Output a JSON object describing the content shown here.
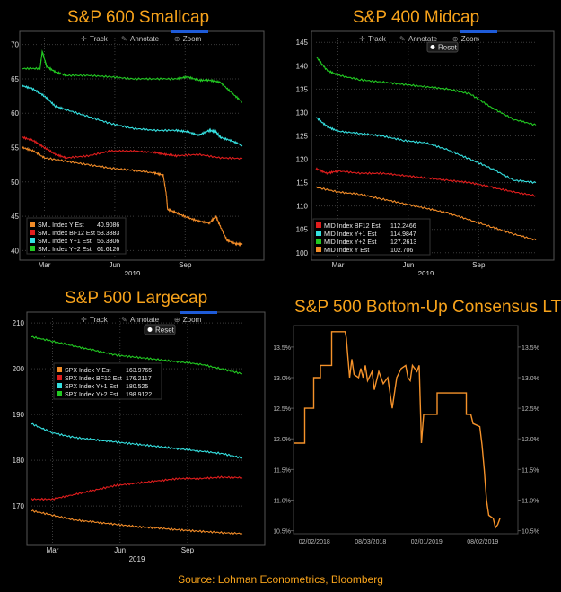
{
  "source": "Source: Lohman Econometrics, Bloomberg",
  "colors": {
    "title": "#f6a21b",
    "orange": "#f28c28",
    "red": "#e11d1d",
    "cyan": "#35e0e0",
    "green": "#22c922",
    "ltg_line": "#f5922a"
  },
  "toolbar": {
    "track": "Track",
    "annotate": "Annotate",
    "zoom": "Zoom",
    "reset": "Reset"
  },
  "chart_data": [
    {
      "id": "sml",
      "type": "line",
      "title": "S&P 600 Smallcap",
      "ylim": [
        39,
        71
      ],
      "yticks": [
        40,
        45,
        50,
        55,
        60,
        65,
        70
      ],
      "x_ticks": [
        "Mar",
        "Jun",
        "Sep"
      ],
      "x_year": "2019",
      "legend": [
        {
          "label": "SML Index Y Est",
          "value": "40.9086",
          "color": "#f28c28"
        },
        {
          "label": "SML Index BF12 Est",
          "value": "53.3883",
          "color": "#e11d1d"
        },
        {
          "label": "SML Index Y+1 Est",
          "value": "55.3306",
          "color": "#35e0e0"
        },
        {
          "label": "SML Index Y+2 Est",
          "value": "61.6126",
          "color": "#22c922"
        }
      ],
      "series": [
        {
          "name": "Y Est",
          "color": "#f28c28",
          "points": [
            [
              0,
              55
            ],
            [
              0.05,
              54.5
            ],
            [
              0.1,
              53.5
            ],
            [
              0.2,
              53
            ],
            [
              0.3,
              52.5
            ],
            [
              0.4,
              52
            ],
            [
              0.5,
              51.7
            ],
            [
              0.6,
              51.3
            ],
            [
              0.64,
              51
            ],
            [
              0.655,
              48
            ],
            [
              0.66,
              46
            ],
            [
              0.7,
              45.5
            ],
            [
              0.75,
              44.8
            ],
            [
              0.8,
              44.3
            ],
            [
              0.85,
              44
            ],
            [
              0.88,
              45
            ],
            [
              0.9,
              43.5
            ],
            [
              0.93,
              41.5
            ],
            [
              0.97,
              41
            ],
            [
              1,
              40.9
            ]
          ]
        },
        {
          "name": "BF12 Est",
          "color": "#e11d1d",
          "points": [
            [
              0,
              56.5
            ],
            [
              0.05,
              56
            ],
            [
              0.1,
              55
            ],
            [
              0.15,
              54
            ],
            [
              0.2,
              53.5
            ],
            [
              0.3,
              53.8
            ],
            [
              0.4,
              54.5
            ],
            [
              0.5,
              54.5
            ],
            [
              0.6,
              54.3
            ],
            [
              0.65,
              54
            ],
            [
              0.7,
              53.8
            ],
            [
              0.8,
              54
            ],
            [
              0.9,
              53.5
            ],
            [
              1,
              53.4
            ]
          ]
        },
        {
          "name": "Y+1 Est",
          "color": "#35e0e0",
          "points": [
            [
              0,
              64
            ],
            [
              0.05,
              63.5
            ],
            [
              0.1,
              62.5
            ],
            [
              0.15,
              61
            ],
            [
              0.2,
              60.5
            ],
            [
              0.3,
              59.5
            ],
            [
              0.4,
              58.5
            ],
            [
              0.5,
              57.8
            ],
            [
              0.6,
              57.5
            ],
            [
              0.7,
              57.5
            ],
            [
              0.75,
              57.3
            ],
            [
              0.8,
              56.8
            ],
            [
              0.85,
              57.5
            ],
            [
              0.88,
              57.3
            ],
            [
              0.9,
              56.5
            ],
            [
              0.95,
              56
            ],
            [
              1,
              55.3
            ]
          ]
        },
        {
          "name": "Y+2 Est",
          "color": "#22c922",
          "points": [
            [
              0,
              66.5
            ],
            [
              0.08,
              66.5
            ],
            [
              0.09,
              69
            ],
            [
              0.11,
              66.8
            ],
            [
              0.15,
              66
            ],
            [
              0.2,
              65.5
            ],
            [
              0.3,
              65.5
            ],
            [
              0.4,
              65.3
            ],
            [
              0.5,
              65
            ],
            [
              0.6,
              65
            ],
            [
              0.7,
              65
            ],
            [
              0.75,
              65.3
            ],
            [
              0.8,
              64.8
            ],
            [
              0.85,
              64.8
            ],
            [
              0.9,
              64.5
            ],
            [
              0.95,
              63
            ],
            [
              1,
              61.6
            ]
          ]
        }
      ]
    },
    {
      "id": "mid",
      "type": "line",
      "title": "S&P 400 Midcap",
      "ylim": [
        99,
        146
      ],
      "yticks": [
        100,
        105,
        110,
        115,
        120,
        125,
        130,
        135,
        140,
        145
      ],
      "x_ticks": [
        "Mar",
        "Jun",
        "Sep"
      ],
      "x_year": "2019",
      "legend": [
        {
          "label": "MID Index BF12 Est",
          "value": "112.2466",
          "color": "#e11d1d"
        },
        {
          "label": "MID Index Y+1 Est",
          "value": "114.9847",
          "color": "#35e0e0"
        },
        {
          "label": "MID Index Y+2 Est",
          "value": "127.2613",
          "color": "#22c922"
        },
        {
          "label": "MID Index Y Est",
          "value": "102.706",
          "color": "#f28c28"
        }
      ],
      "series": [
        {
          "name": "Y+2 Est",
          "color": "#22c922",
          "points": [
            [
              0,
              142
            ],
            [
              0.05,
              139
            ],
            [
              0.1,
              138
            ],
            [
              0.2,
              137
            ],
            [
              0.3,
              136.5
            ],
            [
              0.4,
              136
            ],
            [
              0.5,
              135.5
            ],
            [
              0.6,
              135
            ],
            [
              0.7,
              134
            ],
            [
              0.8,
              131
            ],
            [
              0.9,
              128.5
            ],
            [
              1,
              127.3
            ]
          ]
        },
        {
          "name": "Y+1 Est",
          "color": "#35e0e0",
          "points": [
            [
              0,
              129
            ],
            [
              0.05,
              127
            ],
            [
              0.1,
              126
            ],
            [
              0.2,
              125.5
            ],
            [
              0.3,
              125
            ],
            [
              0.4,
              124
            ],
            [
              0.5,
              123.5
            ],
            [
              0.6,
              122
            ],
            [
              0.7,
              120
            ],
            [
              0.8,
              118
            ],
            [
              0.9,
              115.5
            ],
            [
              1,
              115
            ]
          ]
        },
        {
          "name": "BF12 Est",
          "color": "#e11d1d",
          "points": [
            [
              0,
              118
            ],
            [
              0.05,
              117
            ],
            [
              0.1,
              117.5
            ],
            [
              0.2,
              117
            ],
            [
              0.3,
              117
            ],
            [
              0.4,
              116.5
            ],
            [
              0.5,
              116
            ],
            [
              0.6,
              115.5
            ],
            [
              0.7,
              115
            ],
            [
              0.8,
              114
            ],
            [
              0.9,
              113
            ],
            [
              1,
              112.2
            ]
          ]
        },
        {
          "name": "Y Est",
          "color": "#f28c28",
          "points": [
            [
              0,
              114
            ],
            [
              0.1,
              113
            ],
            [
              0.2,
              112.5
            ],
            [
              0.3,
              111.5
            ],
            [
              0.4,
              110.5
            ],
            [
              0.5,
              109.5
            ],
            [
              0.6,
              108.5
            ],
            [
              0.7,
              107
            ],
            [
              0.8,
              105.5
            ],
            [
              0.9,
              104
            ],
            [
              1,
              102.7
            ]
          ]
        }
      ]
    },
    {
      "id": "spx",
      "type": "line",
      "title": "S&P 500 Largecap",
      "ylim": [
        162,
        211
      ],
      "yticks": [
        170,
        180,
        190,
        200,
        210
      ],
      "x_ticks": [
        "Mar",
        "Jun",
        "Sep"
      ],
      "x_year": "2019",
      "legend": [
        {
          "label": "SPX Index Y Est",
          "value": "163.9765",
          "color": "#f28c28"
        },
        {
          "label": "SPX Index BF12 Est",
          "value": "176.2117",
          "color": "#e11d1d"
        },
        {
          "label": "SPX Index Y+1 Est",
          "value": "180.525",
          "color": "#35e0e0"
        },
        {
          "label": "SPX Index Y+2 Est",
          "value": "198.9122",
          "color": "#22c922"
        }
      ],
      "series": [
        {
          "name": "Y+2 Est",
          "color": "#22c922",
          "points": [
            [
              0,
              207
            ],
            [
              0.1,
              206
            ],
            [
              0.2,
              205
            ],
            [
              0.3,
              204
            ],
            [
              0.4,
              203
            ],
            [
              0.5,
              202.5
            ],
            [
              0.6,
              202
            ],
            [
              0.7,
              201.5
            ],
            [
              0.8,
              201
            ],
            [
              0.9,
              200
            ],
            [
              1,
              198.9
            ]
          ]
        },
        {
          "name": "Y+1 Est",
          "color": "#35e0e0",
          "points": [
            [
              0,
              188
            ],
            [
              0.1,
              186
            ],
            [
              0.2,
              185
            ],
            [
              0.3,
              184.5
            ],
            [
              0.4,
              184
            ],
            [
              0.5,
              183.5
            ],
            [
              0.6,
              183
            ],
            [
              0.7,
              182.5
            ],
            [
              0.8,
              182
            ],
            [
              0.9,
              181.5
            ],
            [
              1,
              180.5
            ]
          ]
        },
        {
          "name": "BF12 Est",
          "color": "#e11d1d",
          "points": [
            [
              0,
              171.5
            ],
            [
              0.1,
              171.5
            ],
            [
              0.2,
              172.5
            ],
            [
              0.3,
              173.5
            ],
            [
              0.4,
              174.5
            ],
            [
              0.5,
              175
            ],
            [
              0.6,
              175.5
            ],
            [
              0.7,
              176
            ],
            [
              0.8,
              176
            ],
            [
              0.9,
              176.3
            ],
            [
              1,
              176.2
            ]
          ]
        },
        {
          "name": "Y Est",
          "color": "#f28c28",
          "points": [
            [
              0,
              169
            ],
            [
              0.1,
              168
            ],
            [
              0.2,
              167
            ],
            [
              0.3,
              166.5
            ],
            [
              0.4,
              166
            ],
            [
              0.5,
              165.5
            ],
            [
              0.6,
              165.2
            ],
            [
              0.7,
              164.8
            ],
            [
              0.8,
              164.5
            ],
            [
              0.9,
              164.2
            ],
            [
              1,
              164
            ]
          ]
        }
      ]
    },
    {
      "id": "ltg",
      "type": "line",
      "title": "S&P 500 Bottom-Up Consensus LTG",
      "ylim": [
        10.45,
        13.85
      ],
      "yticks": [
        "10.5%",
        "11.0%",
        "11.5%",
        "12.0%",
        "12.5%",
        "13.0%",
        "13.5%"
      ],
      "ytick_values": [
        10.5,
        11.0,
        11.5,
        12.0,
        12.5,
        13.0,
        13.5
      ],
      "x_ticks": [
        "02/02/2018",
        "08/03/2018",
        "02/01/2019",
        "08/02/2019"
      ],
      "x_tick_positions": [
        0.093,
        0.343,
        0.593,
        0.843
      ],
      "series": [
        {
          "name": "LTG",
          "color": "#f5922a",
          "points": [
            [
              0,
              11.93
            ],
            [
              0.05,
              11.93
            ],
            [
              0.05,
              12.5
            ],
            [
              0.09,
              12.5
            ],
            [
              0.09,
              13.0
            ],
            [
              0.12,
              13.0
            ],
            [
              0.12,
              13.2
            ],
            [
              0.17,
              13.2
            ],
            [
              0.17,
              13.75
            ],
            [
              0.23,
              13.75
            ],
            [
              0.235,
              13.65
            ],
            [
              0.25,
              13.0
            ],
            [
              0.26,
              13.3
            ],
            [
              0.27,
              13.05
            ],
            [
              0.29,
              13.0
            ],
            [
              0.3,
              13.15
            ],
            [
              0.31,
              13.0
            ],
            [
              0.32,
              13.2
            ],
            [
              0.33,
              12.95
            ],
            [
              0.35,
              13.1
            ],
            [
              0.36,
              12.8
            ],
            [
              0.38,
              13.1
            ],
            [
              0.4,
              12.9
            ],
            [
              0.42,
              13.0
            ],
            [
              0.44,
              12.5
            ],
            [
              0.46,
              13.0
            ],
            [
              0.48,
              13.15
            ],
            [
              0.5,
              13.2
            ],
            [
              0.51,
              13.0
            ],
            [
              0.52,
              12.95
            ],
            [
              0.53,
              13.2
            ],
            [
              0.55,
              13.1
            ],
            [
              0.56,
              13.2
            ],
            [
              0.57,
              11.93
            ],
            [
              0.58,
              12.4
            ],
            [
              0.64,
              12.4
            ],
            [
              0.64,
              12.75
            ],
            [
              0.77,
              12.75
            ],
            [
              0.77,
              12.4
            ],
            [
              0.79,
              12.4
            ],
            [
              0.8,
              12.25
            ],
            [
              0.83,
              12.2
            ],
            [
              0.84,
              11.9
            ],
            [
              0.85,
              11.5
            ],
            [
              0.86,
              11.0
            ],
            [
              0.87,
              10.75
            ],
            [
              0.89,
              10.7
            ],
            [
              0.9,
              10.55
            ],
            [
              0.91,
              10.6
            ],
            [
              0.92,
              10.7
            ]
          ]
        }
      ]
    }
  ]
}
